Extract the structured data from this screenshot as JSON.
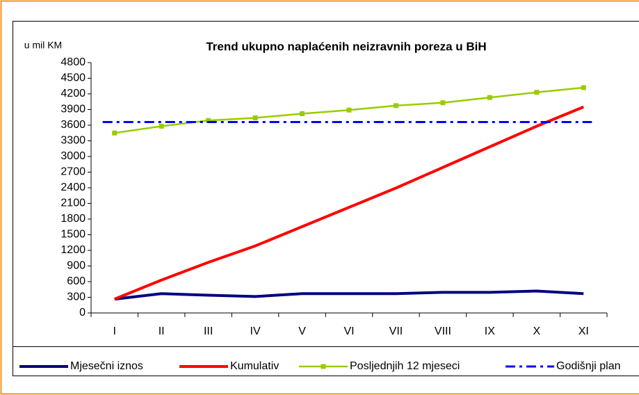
{
  "chart_data": {
    "type": "line",
    "title": "Trend ukupno naplaćenih neizravnih poreza u BiH",
    "y_label": "u mil KM",
    "categories": [
      "I",
      "II",
      "III",
      "IV",
      "V",
      "VI",
      "VII",
      "VIII",
      "IX",
      "X",
      "XI"
    ],
    "series": [
      {
        "name": "Mjesečni iznos",
        "color": "#000080",
        "values": [
          265,
          370,
          340,
          315,
          370,
          370,
          370,
          395,
          395,
          420,
          370
        ]
      },
      {
        "name": "Kumulativ",
        "color": "#ff0000",
        "values": [
          265,
          630,
          970,
          1285,
          1655,
          2025,
          2395,
          2790,
          3185,
          3580,
          3950
        ]
      },
      {
        "name": "Posljednjih 12 mjeseci",
        "color": "#99cc00",
        "marker": "square",
        "values": [
          3450,
          3580,
          3690,
          3740,
          3820,
          3890,
          3975,
          4030,
          4130,
          4230,
          4320
        ]
      },
      {
        "name": "Godišnji plan",
        "color": "#0000ff",
        "dash": "dash-dot",
        "values": [
          3660,
          3660,
          3660,
          3660,
          3660,
          3660,
          3660,
          3660,
          3660,
          3660,
          3660
        ]
      }
    ],
    "ylim": [
      0,
      4800
    ],
    "yticks": [
      0,
      300,
      600,
      900,
      1200,
      1500,
      1800,
      2100,
      2400,
      2700,
      3000,
      3300,
      3600,
      3900,
      4200,
      4500,
      4800
    ],
    "legend": "bottom"
  }
}
